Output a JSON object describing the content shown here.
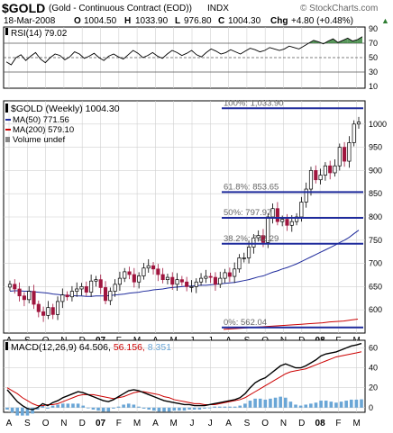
{
  "header": {
    "ticker": "$GOLD",
    "description": "(Gold - Continuous Contract (EOD))",
    "exchange": "INDX",
    "watermark": "© StockCharts.com",
    "date": "18-Mar-2008",
    "open_label": "O",
    "open": "1004.50",
    "high_label": "H",
    "high": "1033.90",
    "low_label": "L",
    "low": "976.80",
    "close_label": "C",
    "close": "1004.30",
    "change_label": "Chg",
    "change": "+4.80 (+0.48%)",
    "change_arrow": "▲"
  },
  "colors": {
    "price_bar_up": "#000000",
    "price_bar_down": "#a0153e",
    "ma50": "#1f2b9c",
    "ma200": "#cc0000",
    "fib_line": "#1f2b9c",
    "rsi_line": "#000000",
    "rsi_fill_overbought": "#2e7d32",
    "macd_line": "#000000",
    "macd_signal": "#cc0000",
    "macd_hist": "#6aa6d6",
    "grid": "#d0d0d0"
  },
  "chart_data": [
    {
      "type": "line",
      "title": "RSI(14) 79.02",
      "legend_label": "RSI(14)",
      "legend_value": "79.02",
      "ylim": [
        10,
        90
      ],
      "yticks": [
        90,
        70,
        50,
        30,
        10
      ],
      "reference_lines": [
        70,
        50,
        30
      ],
      "series": [
        {
          "values": [
            44,
            40,
            50,
            54,
            46,
            52,
            57,
            48,
            43,
            50,
            55,
            53,
            47,
            51,
            58,
            55,
            49,
            52,
            56,
            50,
            46,
            52,
            55,
            51,
            48,
            54,
            60,
            56,
            50,
            53,
            57,
            52,
            49,
            55,
            60,
            57,
            53,
            56,
            60,
            54,
            51,
            57,
            62,
            59,
            55,
            57,
            61,
            58,
            55,
            59,
            63,
            61,
            58,
            60,
            64,
            62,
            60,
            62,
            66,
            64,
            62,
            66,
            70,
            74,
            72,
            69,
            73,
            76,
            71,
            74,
            77,
            73,
            75,
            79
          ]
        }
      ],
      "grid": true
    },
    {
      "type": "bar",
      "title": "$GOLD (Weekly) 1004.30",
      "legend": [
        {
          "label": "$GOLD (Weekly)",
          "value": "1004.30"
        },
        {
          "label": "MA(50)",
          "value": "771.56"
        },
        {
          "label": "MA(200)",
          "value": "579.10"
        },
        {
          "label": "Volume undef",
          "value": ""
        }
      ],
      "ylim": [
        550,
        1050
      ],
      "yticks": [
        600,
        650,
        700,
        750,
        800,
        850,
        900,
        950,
        1000
      ],
      "x_tick_labels": [
        "A",
        "S",
        "O",
        "N",
        "D",
        "07",
        "F",
        "M",
        "A",
        "M",
        "J",
        "J",
        "A",
        "S",
        "O",
        "N",
        "D",
        "08",
        "F",
        "M"
      ],
      "closes": [
        655,
        645,
        630,
        622,
        640,
        612,
        596,
        588,
        605,
        590,
        618,
        632,
        628,
        640,
        645,
        650,
        638,
        662,
        665,
        648,
        620,
        640,
        655,
        668,
        682,
        676,
        660,
        673,
        690,
        695,
        688,
        676,
        665,
        670,
        655,
        665,
        660,
        650,
        650,
        660,
        668,
        672,
        670,
        655,
        668,
        680,
        672,
        688,
        712,
        712,
        735,
        755,
        760,
        745,
        800,
        818,
        790,
        795,
        782,
        790,
        800,
        832,
        860,
        900,
        880,
        890,
        910,
        895,
        910,
        950,
        920,
        960,
        1000,
        1004.3
      ],
      "up": [
        true,
        false,
        false,
        false,
        true,
        false,
        false,
        false,
        true,
        false,
        true,
        true,
        false,
        true,
        true,
        true,
        false,
        true,
        true,
        false,
        false,
        true,
        true,
        true,
        true,
        false,
        false,
        true,
        true,
        true,
        false,
        false,
        false,
        true,
        false,
        true,
        false,
        false,
        true,
        true,
        true,
        true,
        false,
        false,
        true,
        true,
        false,
        true,
        true,
        true,
        true,
        true,
        true,
        false,
        true,
        true,
        false,
        true,
        false,
        true,
        true,
        true,
        true,
        true,
        false,
        true,
        true,
        false,
        true,
        true,
        false,
        true,
        true,
        true
      ],
      "ma50": [
        640,
        641,
        641,
        640,
        640,
        639,
        638,
        637,
        636,
        634,
        633,
        632,
        631,
        631,
        630,
        630,
        629,
        629,
        630,
        630,
        630,
        631,
        632,
        633,
        634,
        636,
        637,
        638,
        640,
        641,
        643,
        644,
        645,
        647,
        648,
        649,
        650,
        651,
        651,
        652,
        653,
        653,
        654,
        655,
        656,
        657,
        658,
        659,
        661,
        663,
        665,
        668,
        671,
        673,
        677,
        681,
        684,
        688,
        691,
        695,
        699,
        704,
        709,
        714,
        719,
        724,
        729,
        734,
        739,
        745,
        750,
        756,
        764,
        771.56
      ],
      "ma200": [
        558,
        559,
        560,
        561,
        562,
        563,
        564,
        565,
        566,
        567,
        568,
        569,
        570,
        571,
        572,
        574,
        575,
        576,
        578,
        580
      ],
      "fibonacci": [
        {
          "label": "100%: 1,033.90",
          "value": 1033.9
        },
        {
          "label": "61.8%: 853.65",
          "value": 853.65
        },
        {
          "label": "50%: 797.97",
          "value": 797.97
        },
        {
          "label": "38.2%: 742.29",
          "value": 742.29
        },
        {
          "label": "0%: 562.04",
          "value": 562.04
        }
      ],
      "grid": true
    },
    {
      "type": "line",
      "title": "MACD(12,26,9)",
      "legend_label": "MACD(12,26,9)",
      "legend_values": [
        "64.506",
        "56.156",
        "8.351"
      ],
      "ylim": [
        -2,
        65
      ],
      "yticks": [
        60,
        40,
        20,
        0
      ],
      "series": [
        {
          "name": "MACD",
          "values": [
            18,
            12,
            6,
            2,
            -1,
            -2,
            0,
            4,
            2,
            5,
            7,
            10,
            12,
            14,
            16,
            15,
            13,
            11,
            9,
            7,
            6,
            8,
            11,
            14,
            17,
            18,
            17,
            15,
            13,
            11,
            9,
            7,
            6,
            5,
            4,
            3,
            3,
            2,
            2,
            2,
            3,
            4,
            5,
            6,
            7,
            8,
            10,
            14,
            20,
            25,
            28,
            30,
            34,
            38,
            42,
            44,
            42,
            40,
            40,
            42,
            45,
            48,
            52,
            54,
            55,
            56,
            58,
            60,
            62,
            63,
            64.5
          ]
        },
        {
          "name": "Signal",
          "values": [
            20,
            17,
            14,
            10,
            7,
            4,
            2,
            2,
            3,
            3,
            4,
            6,
            8,
            10,
            12,
            13,
            13,
            13,
            12,
            11,
            10,
            9,
            10,
            11,
            13,
            15,
            16,
            16,
            15,
            14,
            13,
            11,
            10,
            8,
            7,
            6,
            5,
            4,
            4,
            3,
            3,
            3,
            4,
            5,
            6,
            7,
            8,
            10,
            13,
            16,
            19,
            22,
            25,
            28,
            31,
            34,
            36,
            37,
            38,
            39,
            41,
            43,
            45,
            47,
            49,
            51,
            52,
            53,
            54,
            55,
            56.2
          ]
        },
        {
          "name": "Histogram",
          "values": [
            -2,
            -5,
            -8,
            -8,
            -8,
            -6,
            -2,
            2,
            -1,
            2,
            3,
            4,
            4,
            4,
            4,
            2,
            0,
            -2,
            -3,
            -4,
            -4,
            -1,
            1,
            3,
            4,
            3,
            1,
            -1,
            -2,
            -3,
            -4,
            -4,
            -4,
            -3,
            -3,
            -3,
            -2,
            -2,
            -2,
            -1,
            0,
            1,
            1,
            1,
            1,
            1,
            2,
            4,
            7,
            9,
            9,
            8,
            9,
            10,
            11,
            10,
            6,
            3,
            2,
            3,
            4,
            5,
            7,
            7,
            6,
            5,
            6,
            7,
            8,
            8,
            8.35
          ]
        }
      ],
      "grid": true
    }
  ],
  "bottom_axis_labels": [
    "A",
    "S",
    "O",
    "N",
    "D",
    "07",
    "F",
    "M",
    "A",
    "M",
    "J",
    "J",
    "A",
    "S",
    "O",
    "N",
    "D",
    "08",
    "F",
    "M"
  ]
}
